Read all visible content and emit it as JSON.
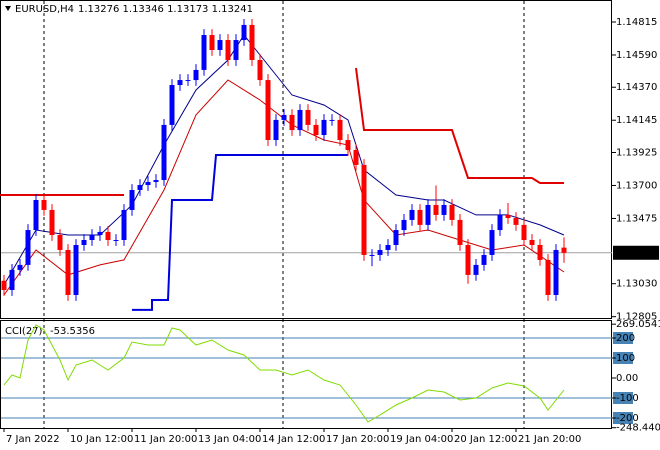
{
  "chart_data": [
    {
      "type": "candlestick",
      "title": "EURUSD,H4",
      "subtitle": "1.13276 1.13346 1.13173 1.13241",
      "up_color": "#0000ff",
      "down_color": "#ff0000",
      "xlim": [
        -0.5,
        76
      ],
      "xticks": [
        {
          "value": 0,
          "label": "7 Jan 2022"
        },
        {
          "value": 8,
          "label": "10 Jan 12:00"
        },
        {
          "value": 16,
          "label": "11 Jan 20:00"
        },
        {
          "value": 24,
          "label": "13 Jan 04:00"
        },
        {
          "value": 32,
          "label": "14 Jan 12:00"
        },
        {
          "value": 40,
          "label": "17 Jan 20:00"
        },
        {
          "value": 48,
          "label": "19 Jan 04:00"
        },
        {
          "value": 56,
          "label": "20 Jan 12:00"
        },
        {
          "value": 64,
          "label": "21 Jan 20:00"
        }
      ],
      "ylim": [
        1.12796,
        1.14965
      ],
      "yticks": [
        1.14815,
        {
          "value": 1.1459,
          "label": "1.14590"
        },
        {
          "value": 1.1437,
          "label": "1.14370"
        },
        1.14145,
        1.13925,
        {
          "value": 1.137,
          "label": "1.13700"
        },
        1.13475,
        {
          "value": 1.1303,
          "label": "1.13030"
        },
        1.12805
      ],
      "last_price": 1.13241,
      "open": [
        1.1305,
        1.12987,
        1.13124,
        1.13158,
        1.13396,
        1.13601,
        1.13533,
        1.13362,
        1.1326,
        1.12953,
        1.13294,
        1.13328,
        1.13362,
        1.13383,
        1.13328,
        1.13328,
        1.13533,
        1.13669,
        1.13703,
        1.13724,
        1.13737,
        1.14113,
        1.14385,
        1.14419,
        1.14419,
        1.14488,
        1.14726,
        1.14624,
        1.14692,
        1.14556,
        1.14692,
        1.14795,
        1.14556,
        1.14419,
        1.1401,
        1.14147,
        1.14181,
        1.14078,
        1.14215,
        1.14113,
        1.14044,
        1.14147,
        1.14147,
        1.1401,
        1.13942,
        1.1384,
        1.13226,
        1.13226,
        1.1326,
        1.13294,
        1.13396,
        1.13465,
        1.13533,
        1.13431,
        1.13567,
        1.13499,
        1.13567,
        1.13465,
        1.13294,
        1.1309,
        1.13158,
        1.13226,
        1.13396,
        1.13499,
        1.13478,
        1.13431,
        1.13328,
        1.13294,
        1.13192,
        1.12953,
        1.13276
      ],
      "high": [
        1.1309,
        1.13164,
        1.13198,
        1.13436,
        1.13641,
        1.13641,
        1.13573,
        1.13402,
        1.133,
        1.13334,
        1.13368,
        1.13402,
        1.13423,
        1.13423,
        1.13368,
        1.13573,
        1.13709,
        1.13743,
        1.13764,
        1.13777,
        1.14153,
        1.14425,
        1.14459,
        1.14459,
        1.14528,
        1.14766,
        1.14766,
        1.14732,
        1.14732,
        1.14732,
        1.14835,
        1.14835,
        1.14596,
        1.14459,
        1.14187,
        1.14221,
        1.14221,
        1.14255,
        1.14255,
        1.14153,
        1.14187,
        1.14187,
        1.14187,
        1.1405,
        1.13982,
        1.1388,
        1.13266,
        1.133,
        1.13334,
        1.13436,
        1.13505,
        1.13573,
        1.13573,
        1.13607,
        1.137,
        1.13607,
        1.13607,
        1.13505,
        1.13334,
        1.13198,
        1.13266,
        1.13436,
        1.13539,
        1.1358,
        1.13518,
        1.13471,
        1.13368,
        1.13334,
        1.13232,
        1.133,
        1.13346
      ],
      "low": [
        1.12947,
        1.12947,
        1.13084,
        1.13118,
        1.13356,
        1.13493,
        1.13322,
        1.1322,
        1.12913,
        1.12913,
        1.13254,
        1.13288,
        1.13322,
        1.13288,
        1.13288,
        1.13288,
        1.13493,
        1.13629,
        1.13663,
        1.13684,
        1.13697,
        1.14073,
        1.14345,
        1.14379,
        1.14379,
        1.14448,
        1.14584,
        1.14584,
        1.14516,
        1.14516,
        1.14652,
        1.14516,
        1.14379,
        1.1397,
        1.1397,
        1.14107,
        1.14038,
        1.14038,
        1.14073,
        1.14004,
        1.14004,
        1.14107,
        1.1397,
        1.13902,
        1.138,
        1.13186,
        1.1315,
        1.13186,
        1.1322,
        1.13254,
        1.13356,
        1.13425,
        1.13391,
        1.13391,
        1.13459,
        1.13459,
        1.13425,
        1.13254,
        1.1303,
        1.1305,
        1.13118,
        1.13186,
        1.13356,
        1.13438,
        1.13391,
        1.13288,
        1.13254,
        1.13152,
        1.12913,
        1.12913,
        1.13173
      ],
      "close": [
        1.12987,
        1.13124,
        1.13158,
        1.13396,
        1.13601,
        1.13533,
        1.13362,
        1.1326,
        1.12953,
        1.13294,
        1.13328,
        1.13362,
        1.13383,
        1.13328,
        1.13328,
        1.13533,
        1.13669,
        1.13703,
        1.13724,
        1.13737,
        1.14113,
        1.14385,
        1.14419,
        1.14419,
        1.14488,
        1.14726,
        1.14624,
        1.14692,
        1.14556,
        1.14692,
        1.14795,
        1.14556,
        1.14419,
        1.1401,
        1.14147,
        1.14181,
        1.14078,
        1.14215,
        1.14113,
        1.14044,
        1.14147,
        1.14147,
        1.1401,
        1.13942,
        1.1384,
        1.13226,
        1.13226,
        1.1326,
        1.13294,
        1.13396,
        1.13465,
        1.13533,
        1.13431,
        1.13567,
        1.13499,
        1.13567,
        1.13465,
        1.13294,
        1.1309,
        1.13158,
        1.13226,
        1.13396,
        1.13499,
        1.13478,
        1.13431,
        1.13328,
        1.13294,
        1.13192,
        1.12953,
        1.1326,
        1.13241
      ],
      "series": [
        {
          "color": "#00008b",
          "x": [
            0,
            4,
            8,
            12,
            16,
            20,
            24,
            28,
            30,
            32,
            36,
            40,
            43,
            45,
            49,
            53,
            55,
            59,
            63,
            67,
            70
          ],
          "values": [
            1.13021,
            1.13396,
            1.13362,
            1.13362,
            1.13567,
            1.13976,
            1.14351,
            1.14556,
            1.14726,
            1.1459,
            1.14317,
            1.14249,
            1.14147,
            1.13806,
            1.13635,
            1.13601,
            1.13601,
            1.13499,
            1.13499,
            1.13431,
            1.13362
          ]
        },
        {
          "color": "#cc0000",
          "x": [
            0,
            4,
            8,
            12,
            15,
            20,
            24,
            28,
            32,
            36,
            40,
            43,
            45,
            49,
            53,
            57,
            61,
            65,
            70
          ],
          "values": [
            1.12953,
            1.1326,
            1.1309,
            1.13158,
            1.13192,
            1.13669,
            1.14181,
            1.14419,
            1.14283,
            1.14113,
            1.1401,
            1.13976,
            1.13601,
            1.13362,
            1.13396,
            1.13328,
            1.1326,
            1.13294,
            1.1311
          ]
        },
        {
          "color": "#e00000",
          "width": 2,
          "x": [
            -0.5,
            15
          ],
          "values": [
            1.13635,
            1.13635
          ]
        },
        {
          "color": "#0000dd",
          "width": 2,
          "x": [
            16,
            18.5,
            18.5,
            20.5,
            21,
            26,
            26.5,
            43
          ],
          "values": [
            1.12851,
            1.12851,
            1.12919,
            1.12919,
            1.13601,
            1.13601,
            1.13908,
            1.13908
          ]
        },
        {
          "color": "#e00000",
          "width": 2,
          "x": [
            44,
            45,
            45.5,
            56,
            58,
            66,
            67,
            70
          ],
          "values": [
            1.14501,
            1.14078,
            1.14078,
            1.14078,
            1.13751,
            1.13751,
            1.13717,
            1.13717
          ]
        }
      ]
    },
    {
      "type": "line",
      "title": "CCI(27)",
      "last_value": -53.5356,
      "xlim": [
        -0.5,
        76
      ],
      "ylim": [
        -250,
        290
      ],
      "yticks": [
        269.0541,
        200,
        100,
        {
          "value": 0,
          "label": "0.00"
        },
        -100,
        -200,
        -248.4405
      ],
      "levels": [
        200,
        100,
        -100,
        -200
      ],
      "series": [
        {
          "color": "#7fdc00",
          "x": [
            0,
            1,
            2,
            3,
            4,
            5,
            6,
            7,
            8,
            9,
            11,
            13,
            15,
            16,
            18,
            20,
            21,
            22,
            24,
            26,
            28,
            30,
            32,
            34,
            36,
            38,
            40,
            42,
            44,
            45.5,
            47,
            49,
            51,
            53,
            55,
            57,
            59,
            61,
            63,
            65,
            67,
            68,
            70
          ],
          "values": [
            -35,
            15,
            0,
            190,
            265,
            240,
            165,
            90,
            -10,
            65,
            90,
            40,
            100,
            180,
            165,
            165,
            250,
            240,
            165,
            190,
            140,
            115,
            40,
            40,
            15,
            40,
            -10,
            -35,
            -135,
            -220,
            -185,
            -135,
            -100,
            -60,
            -70,
            -110,
            -100,
            -50,
            -25,
            -40,
            -100,
            -160,
            -60
          ]
        }
      ]
    }
  ]
}
